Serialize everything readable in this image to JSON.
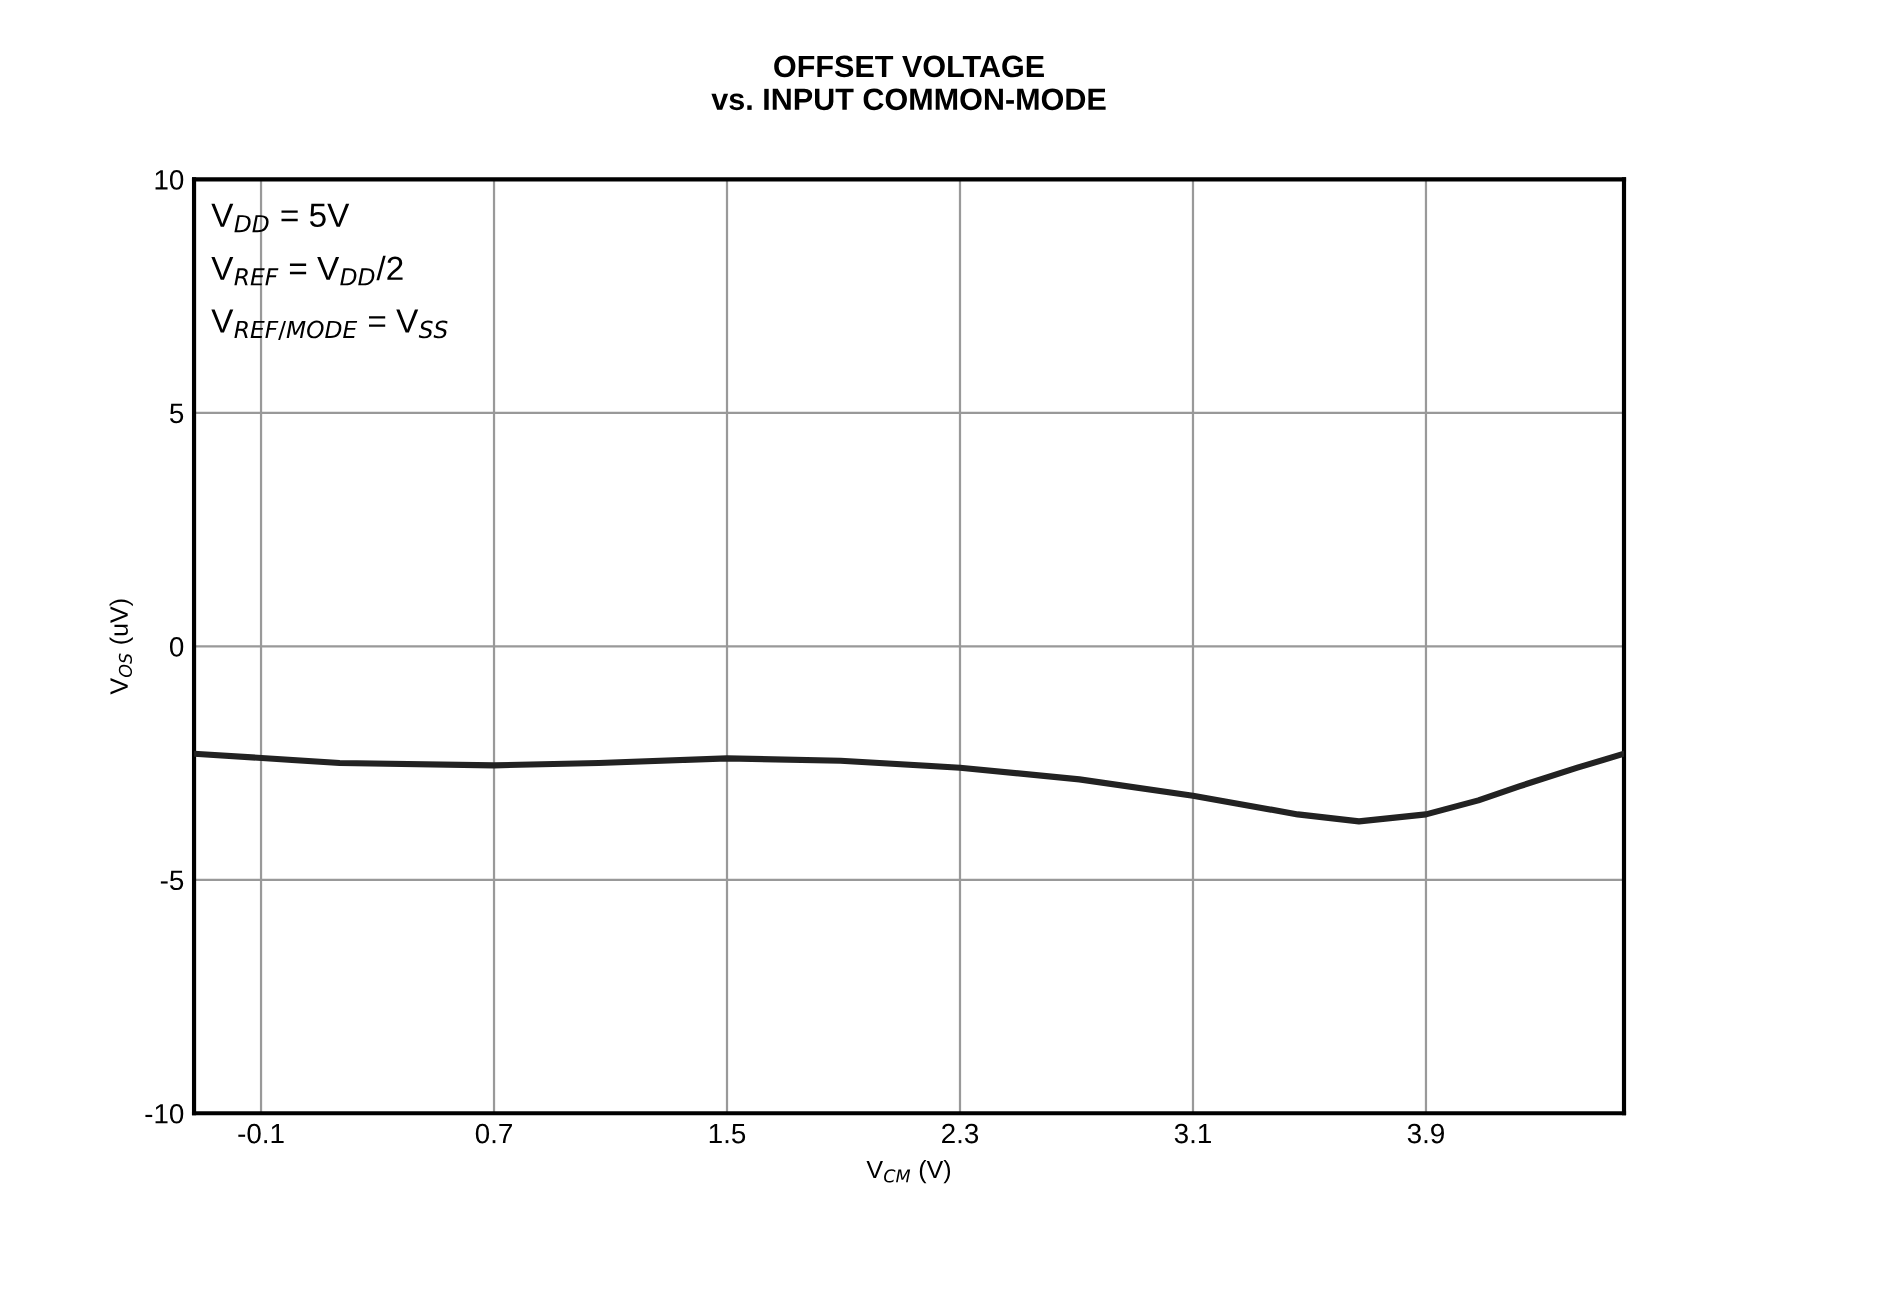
{
  "chart_data": {
    "type": "line",
    "title": "OFFSET VOLTAGE\nvs. INPUT COMMON-MODE",
    "xlabel": "V$_{CM}$ (V)",
    "ylabel": "V$_{OS}$ (uV)",
    "annotations": [
      "V$_{DD}$ = 5V",
      "V$_{REF}$ = V$_{DD}$/2",
      "V$_{REF/MODE}$ = V$_{SS}$"
    ],
    "series": [
      {
        "color": "#222222",
        "x": [
          -0.33,
          0.17,
          0.7,
          1.06,
          1.5,
          1.89,
          2.3,
          2.71,
          3.1,
          3.46,
          3.67,
          3.9,
          4.08,
          4.22,
          4.42,
          4.58
        ],
        "values": [
          -2.3,
          -2.5,
          -2.55,
          -2.5,
          -2.4,
          -2.45,
          -2.6,
          -2.85,
          -3.2,
          -3.6,
          -3.75,
          -3.6,
          -3.3,
          -3.0,
          -2.6,
          -2.3
        ]
      }
    ],
    "xlim": [
      -0.33,
      4.58
    ],
    "xticks": [
      -0.1,
      0.7,
      1.5,
      2.3,
      3.1,
      3.9
    ],
    "ylim": [
      -10,
      10
    ],
    "yticks": [
      -10,
      -5,
      0,
      5,
      10
    ],
    "grid": true,
    "legend": false,
    "marker": "none",
    "line_style": "solid"
  }
}
